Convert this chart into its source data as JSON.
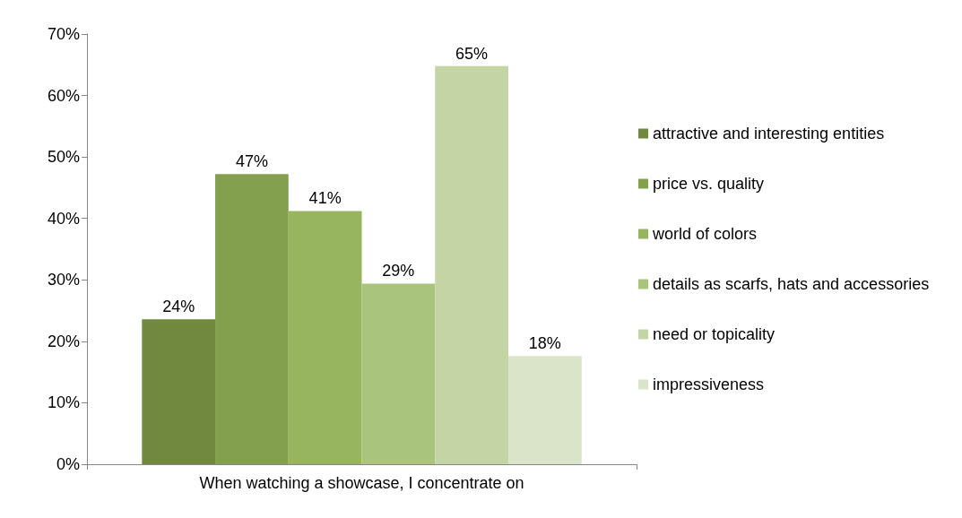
{
  "chart_data": {
    "type": "bar",
    "categories": [
      "When watching a showcase, I concentrate on"
    ],
    "series": [
      {
        "name": "attractive and interesting entities",
        "color": "#71893f",
        "values": [
          23.6
        ],
        "value_labels": [
          "24%"
        ]
      },
      {
        "name": "price vs. quality",
        "color": "#82a04e",
        "values": [
          47.2
        ],
        "value_labels": [
          "47%"
        ]
      },
      {
        "name": "world of colors",
        "color": "#96b55e",
        "values": [
          41.2
        ],
        "value_labels": [
          "41%"
        ]
      },
      {
        "name": "details as scarfs, hats and accessories",
        "color": "#a8c57b",
        "values": [
          29.4
        ],
        "value_labels": [
          "29%"
        ]
      },
      {
        "name": "need or topicality",
        "color": "#c3d4a5",
        "values": [
          64.8
        ],
        "value_labels": [
          "65%"
        ]
      },
      {
        "name": "impressiveness",
        "color": "#d9e4c9",
        "values": [
          17.6
        ],
        "value_labels": [
          "18%"
        ]
      }
    ],
    "ylim": [
      0,
      70
    ],
    "yticks": [
      {
        "value": 0,
        "label": "0%"
      },
      {
        "value": 10,
        "label": "10%"
      },
      {
        "value": 20,
        "label": "20%"
      },
      {
        "value": 30,
        "label": "30%"
      },
      {
        "value": 40,
        "label": "40%"
      },
      {
        "value": 50,
        "label": "50%"
      },
      {
        "value": 60,
        "label": "60%"
      },
      {
        "value": 70,
        "label": "70%"
      }
    ],
    "grid": false,
    "legend": "right"
  }
}
